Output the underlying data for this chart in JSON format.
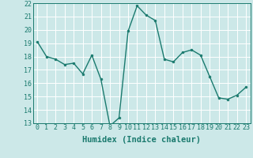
{
  "x": [
    0,
    1,
    2,
    3,
    4,
    5,
    6,
    7,
    8,
    9,
    10,
    11,
    12,
    13,
    14,
    15,
    16,
    17,
    18,
    19,
    20,
    21,
    22,
    23
  ],
  "y": [
    19.1,
    18.0,
    17.8,
    17.4,
    17.5,
    16.7,
    18.1,
    16.3,
    12.8,
    13.4,
    19.9,
    21.8,
    21.1,
    20.7,
    17.8,
    17.6,
    18.3,
    18.5,
    18.1,
    16.5,
    14.9,
    14.8,
    15.1,
    15.7
  ],
  "line_color": "#1a7a6e",
  "marker": "o",
  "markersize": 2.0,
  "linewidth": 1.0,
  "bg_color": "#cce8e8",
  "grid_color": "#ffffff",
  "xlabel": "Humidex (Indice chaleur)",
  "ylim": [
    13,
    22
  ],
  "xlim": [
    -0.5,
    23.5
  ],
  "yticks": [
    13,
    14,
    15,
    16,
    17,
    18,
    19,
    20,
    21,
    22
  ],
  "xticks": [
    0,
    1,
    2,
    3,
    4,
    5,
    6,
    7,
    8,
    9,
    10,
    11,
    12,
    13,
    14,
    15,
    16,
    17,
    18,
    19,
    20,
    21,
    22,
    23
  ],
  "tick_color": "#1a7a6e",
  "label_color": "#1a7a6e",
  "xlabel_fontsize": 7.5,
  "tick_fontsize": 6.0,
  "spine_color": "#1a7a6e"
}
